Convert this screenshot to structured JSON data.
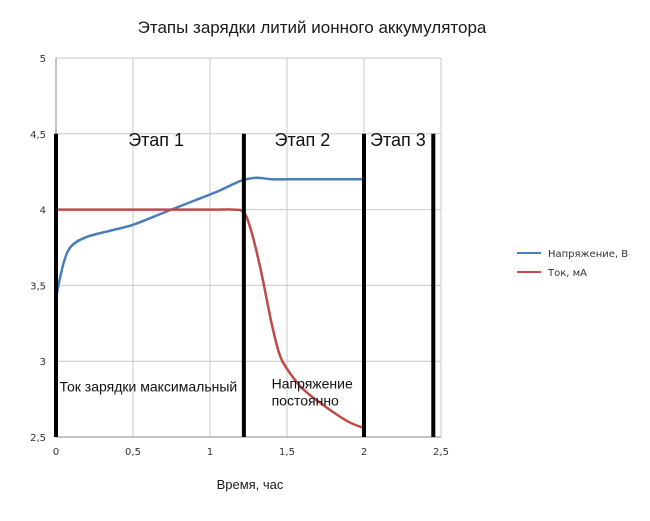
{
  "chart_data": {
    "type": "line",
    "title": "Этапы зарядки литий ионного аккумулятора",
    "xlabel": "Время, час",
    "ylabel": "",
    "xlim": [
      0,
      2.5
    ],
    "ylim": [
      2.5,
      5
    ],
    "x_ticks": [
      "0",
      "0,5",
      "1",
      "1,5",
      "2",
      "2,5"
    ],
    "y_ticks": [
      "2,5",
      "3",
      "3,5",
      "4",
      "4,5",
      "5"
    ],
    "grid": true,
    "legend_position": "right",
    "series": [
      {
        "name": "Напряжение, В",
        "color": "#4a7ebb",
        "x": [
          0,
          0.05,
          0.1,
          0.2,
          0.35,
          0.5,
          0.7,
          0.9,
          1.05,
          1.2,
          1.3,
          1.4,
          1.5,
          1.75,
          2.0
        ],
        "y": [
          3.42,
          3.65,
          3.76,
          3.82,
          3.86,
          3.9,
          3.98,
          4.06,
          4.12,
          4.19,
          4.21,
          4.2,
          4.2,
          4.2,
          4.2
        ]
      },
      {
        "name": "Ток, мА",
        "color": "#be4b48",
        "x": [
          0,
          0.5,
          1.0,
          1.15,
          1.22,
          1.27,
          1.33,
          1.4,
          1.45,
          1.5,
          1.6,
          1.75,
          1.9,
          2.0
        ],
        "y": [
          4.0,
          4.0,
          4.0,
          4.0,
          3.98,
          3.85,
          3.6,
          3.25,
          3.05,
          2.95,
          2.82,
          2.7,
          2.6,
          2.56
        ]
      }
    ],
    "stage_lines_x": [
      0,
      1.22,
      2.0,
      2.45
    ],
    "stage_labels": [
      {
        "text": "Этап 1",
        "x": 0.65,
        "y": 4.42
      },
      {
        "text": "Этап 2",
        "x": 1.6,
        "y": 4.42
      },
      {
        "text": "Этап 3",
        "x": 2.22,
        "y": 4.42
      }
    ],
    "annotations": [
      {
        "lines": [
          "Ток зарядки максимальный"
        ],
        "x": 0.6,
        "y": 2.8
      },
      {
        "lines": [
          "Напряжение",
          "постоянно"
        ],
        "x": 1.4,
        "y": 2.82
      }
    ]
  }
}
